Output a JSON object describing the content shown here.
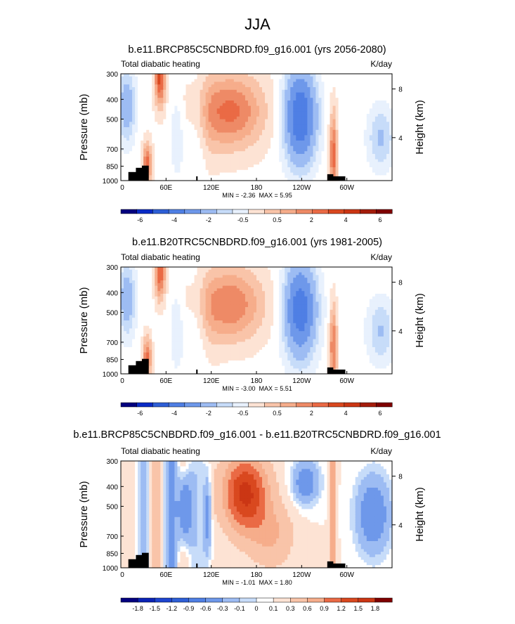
{
  "figure_title": "JJA",
  "chart_data": [
    {
      "type": "heatmap",
      "title": "b.e11.BRCP85C5CNBDRD.f09_g16.001 (yrs 2056-2080)",
      "left_label": "Total diabatic heating",
      "units": "K/day",
      "ylabel": "Pressure (mb)",
      "right_ylabel": "Height (km)",
      "x_ticks": [
        "0",
        "60E",
        "120E",
        "180",
        "120W",
        "60W"
      ],
      "y_ticks": [
        "300",
        "400",
        "500",
        "700",
        "850",
        "1000"
      ],
      "right_ticks": [
        "8",
        "4"
      ],
      "min_max_text": "MIN = -2.36  MAX = 5.95",
      "min": -2.36,
      "max": 5.95,
      "colorbar_levels": [
        "-6",
        "-4",
        "-2",
        "-0.5",
        "0.5",
        "2",
        "4",
        "6"
      ]
    },
    {
      "type": "heatmap",
      "title": "b.e11.B20TRC5CNBDRD.f09_g16.001 (yrs 1981-2005)",
      "left_label": "Total diabatic heating",
      "units": "K/day",
      "ylabel": "Pressure (mb)",
      "right_ylabel": "Height (km)",
      "x_ticks": [
        "0",
        "60E",
        "120E",
        "180",
        "120W",
        "60W"
      ],
      "y_ticks": [
        "300",
        "400",
        "500",
        "700",
        "850",
        "1000"
      ],
      "right_ticks": [
        "8",
        "4"
      ],
      "min_max_text": "MIN = -3.00  MAX = 5.51",
      "min": -3.0,
      "max": 5.51,
      "colorbar_levels": [
        "-6",
        "-4",
        "-2",
        "-0.5",
        "0.5",
        "2",
        "4",
        "6"
      ]
    },
    {
      "type": "heatmap",
      "title": "b.e11.BRCP85C5CNBDRD.f09_g16.001 - b.e11.B20TRC5CNBDRD.f09_g16.001",
      "left_label": "Total diabatic heating",
      "units": "K/day",
      "ylabel": "Pressure (mb)",
      "right_ylabel": "Height (km)",
      "x_ticks": [
        "0",
        "60E",
        "120E",
        "180",
        "120W",
        "60W"
      ],
      "y_ticks": [
        "300",
        "400",
        "500",
        "700",
        "850",
        "1000"
      ],
      "right_ticks": [
        "8",
        "4"
      ],
      "min_max_text": "MIN = -1.01  MAX = 1.80",
      "min": -1.01,
      "max": 1.8,
      "colorbar_levels": [
        "-1.8",
        "-1.5",
        "-1.2",
        "-0.9",
        "-0.6",
        "-0.3",
        "-0.1",
        "0",
        "0.1",
        "0.3",
        "0.6",
        "0.9",
        "1.2",
        "1.5",
        "1.8"
      ]
    }
  ],
  "colors": {
    "dark_blue": "#03007f",
    "blue": "#2e5fd6",
    "mid_blue": "#6e98ea",
    "light_blue": "#b9d1f7",
    "pale_blue": "#e2eefc",
    "white": "#ffffff",
    "pale_orange": "#fde3d4",
    "light_orange": "#f6ad8b",
    "orange": "#ea6a45",
    "red": "#cb3614",
    "dark_red": "#7f0000"
  }
}
